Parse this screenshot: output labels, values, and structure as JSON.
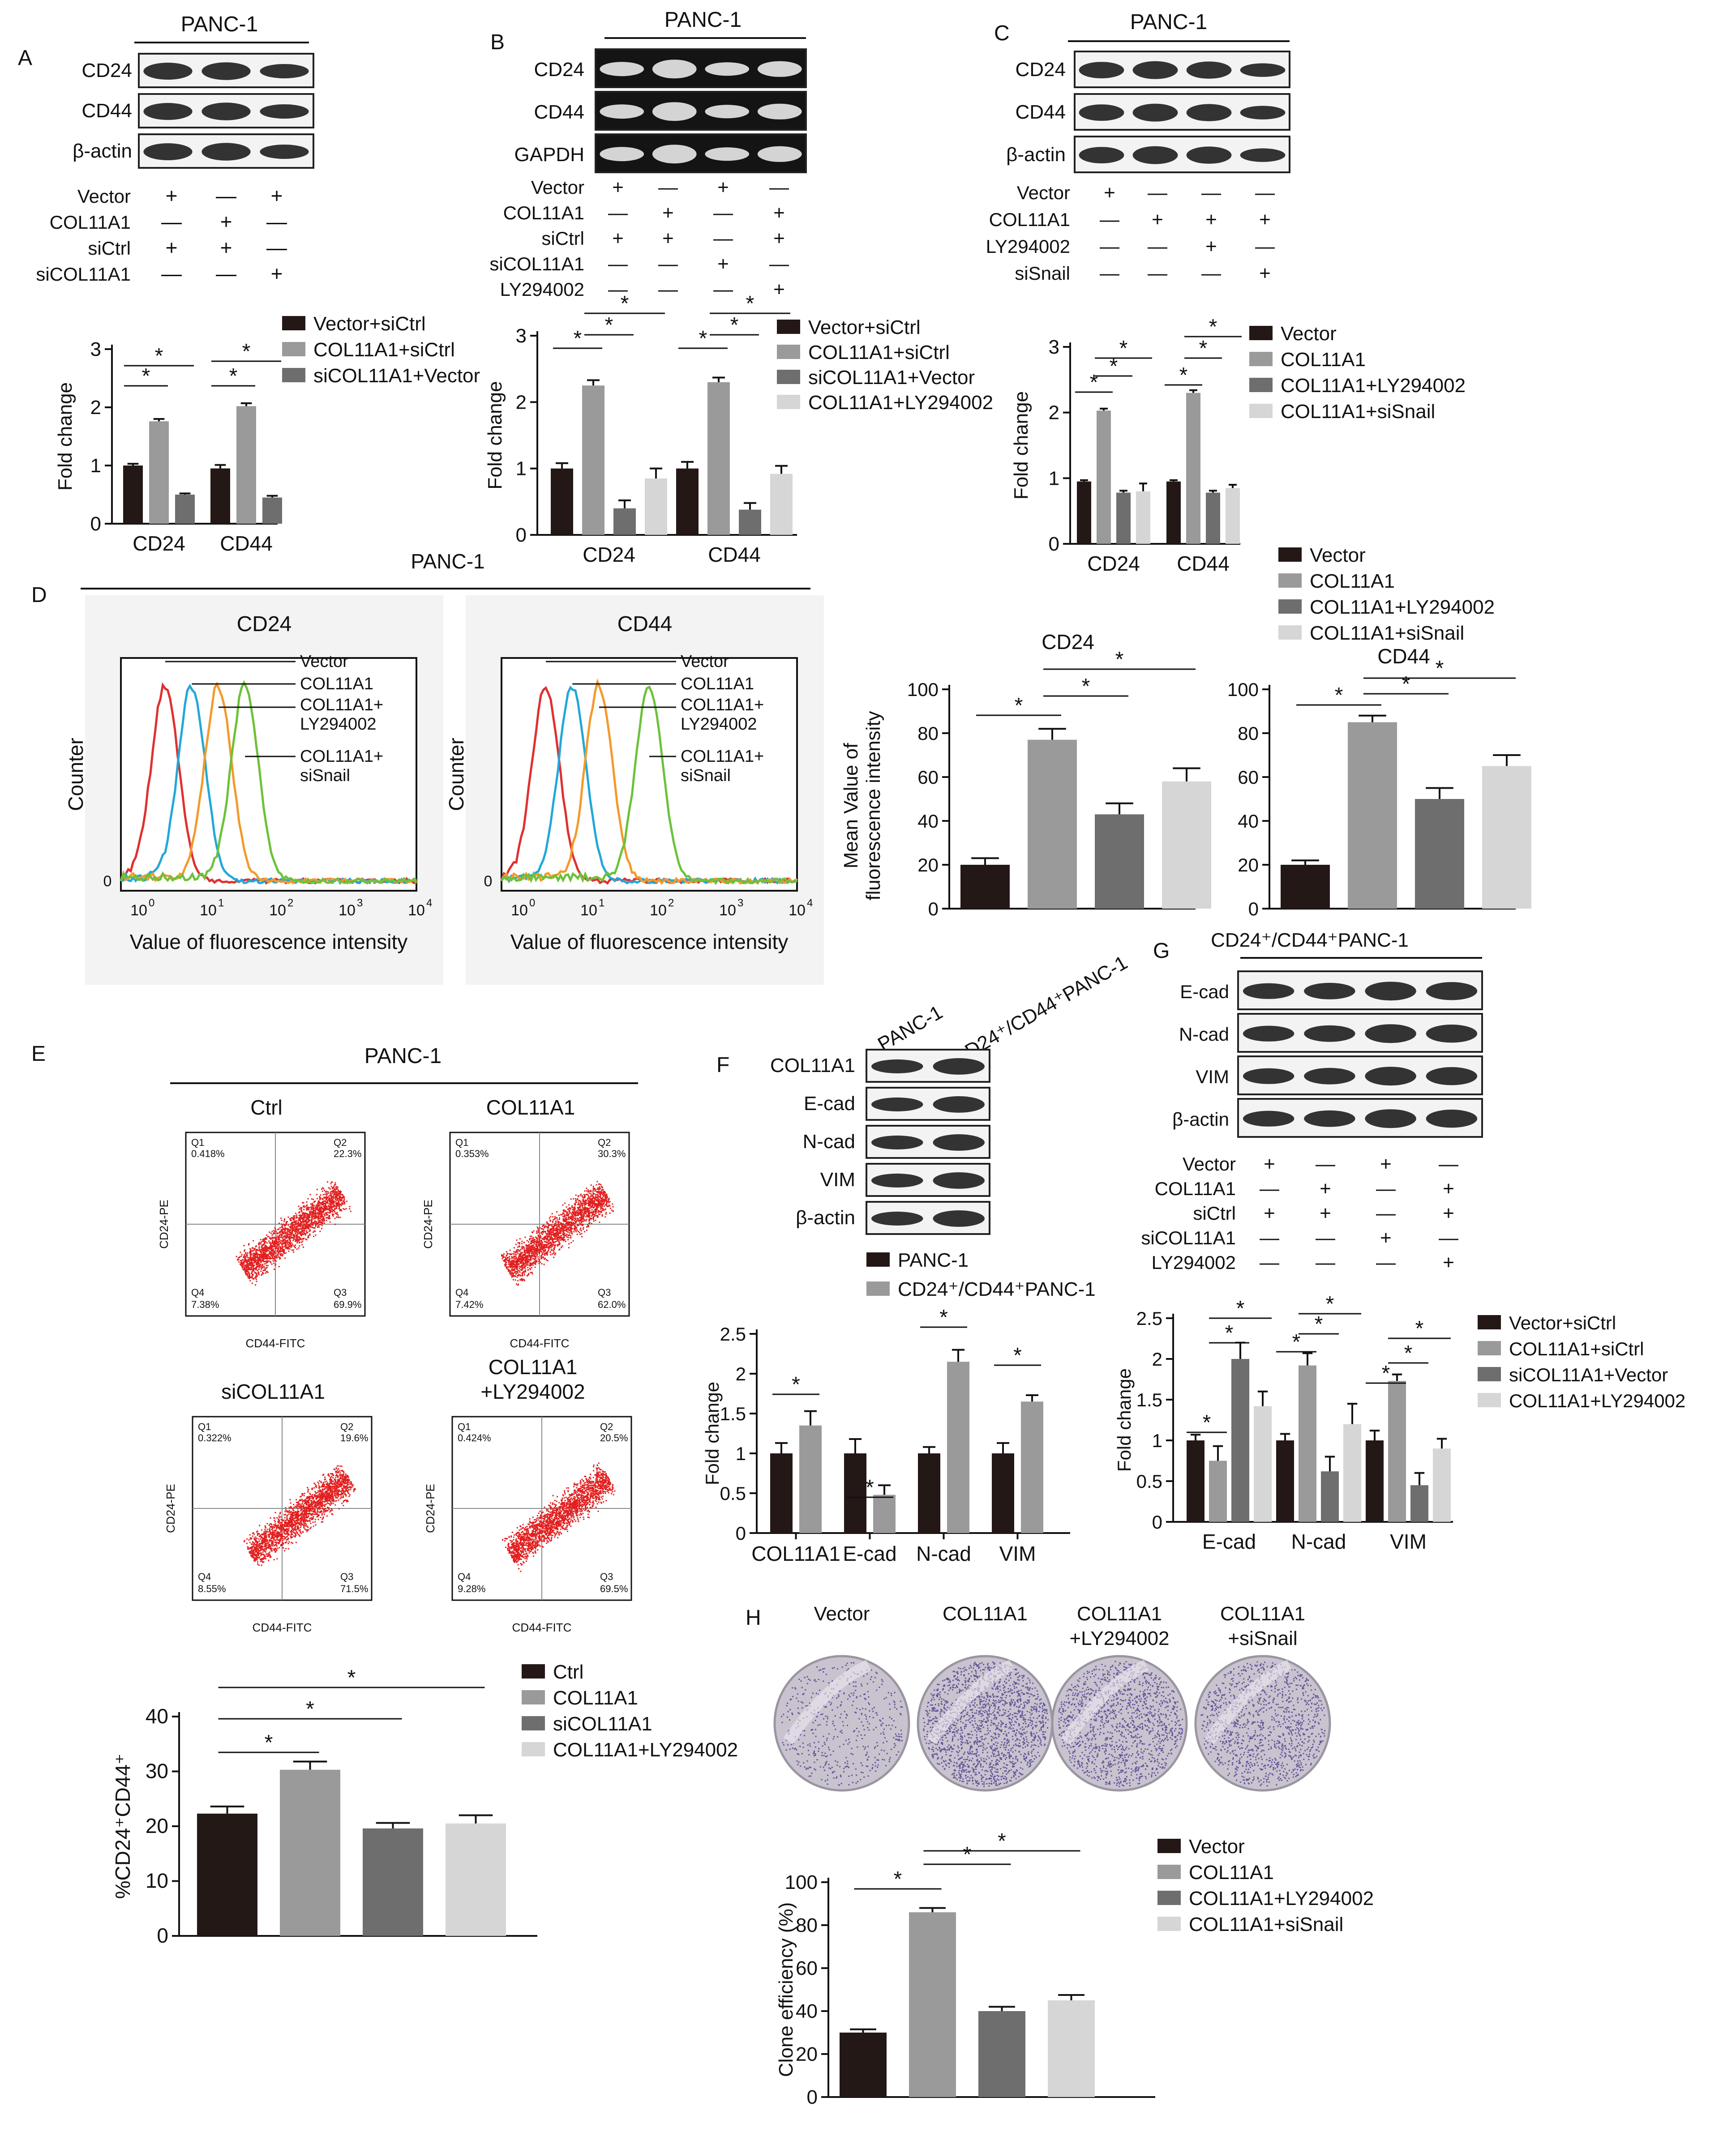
{
  "colors": {
    "c1": "#231816",
    "c2": "#9a9a9b",
    "c3": "#6e6e6f",
    "c4": "#d6d6d6",
    "flowBg": "#f3f3f3",
    "red": "#e03030",
    "cyan": "#22a8d8",
    "orange": "#f39a2c",
    "green": "#6dc13b",
    "dot": "#e21f1f",
    "blot": "#1e1e1e",
    "gel": "#141414"
  },
  "panels": {
    "A": {
      "letter": "A",
      "title": "PANC-1",
      "bands": [
        "CD24",
        "CD44",
        "β-actin"
      ],
      "cond_labels": [
        "Vector",
        "COL11A1",
        "siCtrl",
        "siCOL11A1"
      ],
      "signs": [
        [
          "+",
          "—",
          "+"
        ],
        [
          "—",
          "+",
          "—"
        ],
        [
          "+",
          "+",
          "—"
        ],
        [
          "—",
          "—",
          "+"
        ]
      ],
      "legend": [
        "Vector+siCtrl",
        "COL11A1+siCtrl",
        "siCOL11A1+Vector"
      ]
    },
    "B": {
      "letter": "B",
      "title": "PANC-1",
      "bands": [
        "CD24",
        "CD44",
        "GAPDH"
      ],
      "cond_labels": [
        "Vector",
        "COL11A1",
        "siCtrl",
        "siCOL11A1",
        "LY294002"
      ],
      "signs": [
        [
          "+",
          "—",
          "+",
          "—"
        ],
        [
          "—",
          "+",
          "—",
          "+"
        ],
        [
          "+",
          "+",
          "—",
          "+"
        ],
        [
          "—",
          "—",
          "+",
          "—"
        ],
        [
          "—",
          "—",
          "—",
          "+"
        ]
      ],
      "legend": [
        "Vector+siCtrl",
        "COL11A1+siCtrl",
        "siCOL11A1+Vector",
        "COL11A1+LY294002"
      ]
    },
    "C": {
      "letter": "C",
      "title": "PANC-1",
      "bands": [
        "CD24",
        "CD44",
        "β-actin"
      ],
      "cond_labels": [
        "Vector",
        "COL11A1",
        "LY294002",
        "siSnail"
      ],
      "signs": [
        [
          "+",
          "—",
          "—",
          "—"
        ],
        [
          "—",
          "+",
          "+",
          "+"
        ],
        [
          "—",
          "—",
          "+",
          "—"
        ],
        [
          "—",
          "—",
          "—",
          "+"
        ]
      ],
      "legend": [
        "Vector",
        "COL11A1",
        "COL11A1+LY294002",
        "COL11A1+siSnail"
      ]
    },
    "D": {
      "letter": "D",
      "title": "PANC-1",
      "hist1_title": "CD24",
      "hist2_title": "CD44",
      "ylab": "Counter",
      "xlab": "Value of fluorescence intensity",
      "zero": "0",
      "xticks": [
        "10",
        "10",
        "10",
        "10",
        "10"
      ],
      "xexps": [
        "0",
        "1",
        "2",
        "3",
        "4"
      ],
      "curve_labels": [
        "Vector",
        "COL11A1",
        "COL11A1+",
        "LY294002",
        "COL11A1+",
        "siSnail"
      ],
      "legend": [
        "Vector",
        "COL11A1",
        "COL11A1+LY294002",
        "COL11A1+siSnail"
      ],
      "bar1_title": "CD24",
      "bar2_title": "CD44",
      "bar_ylab1": "Mean Value of",
      "bar_ylab2": "fluorescence intensity"
    },
    "E": {
      "letter": "E",
      "title": "PANC-1",
      "plots": [
        {
          "title": "Ctrl",
          "title2": "",
          "q1": "Q1",
          "q1v": "0.418%",
          "q2": "Q2",
          "q2v": "22.3%",
          "q3": "Q3",
          "q3v": "69.9%",
          "q4": "Q4",
          "q4v": "7.38%"
        },
        {
          "title": "COL11A1",
          "title2": "",
          "q1": "Q1",
          "q1v": "0.353%",
          "q2": "Q2",
          "q2v": "30.3%",
          "q3": "Q3",
          "q3v": "62.0%",
          "q4": "Q4",
          "q4v": "7.42%"
        },
        {
          "title": "siCOL11A1",
          "title2": "",
          "q1": "Q1",
          "q1v": "0.322%",
          "q2": "Q2",
          "q2v": "19.6%",
          "q3": "Q3",
          "q3v": "71.5%",
          "q4": "Q4",
          "q4v": "8.55%"
        },
        {
          "title": "COL11A1",
          "title2": "+LY294002",
          "q1": "Q1",
          "q1v": "0.424%",
          "q2": "Q2",
          "q2v": "20.5%",
          "q3": "Q3",
          "q3v": "69.5%",
          "q4": "Q4",
          "q4v": "9.28%"
        }
      ],
      "flow_xlab": "CD44-FITC",
      "flow_ylab": "CD24-PE",
      "legend": [
        "Ctrl",
        "COL11A1",
        "siCOL11A1",
        "COL11A1+LY294002"
      ]
    },
    "F": {
      "letter": "F",
      "lane_labels": [
        "PANC-1",
        "CD24⁺/CD44⁺PANC-1"
      ],
      "bands": [
        "COL11A1",
        "E-cad",
        "N-cad",
        "VIM",
        "β-actin"
      ],
      "legend": [
        "PANC-1",
        "CD24⁺/CD44⁺PANC-1"
      ]
    },
    "G": {
      "letter": "G",
      "title": "CD24⁺/CD44⁺PANC-1",
      "bands": [
        "E-cad",
        "N-cad",
        "VIM",
        "β-actin"
      ],
      "cond_labels": [
        "Vector",
        "COL11A1",
        "siCtrl",
        "siCOL11A1",
        "LY294002"
      ],
      "signs": [
        [
          "+",
          "—",
          "+",
          "—"
        ],
        [
          "—",
          "+",
          "—",
          "+"
        ],
        [
          "+",
          "+",
          "—",
          "+"
        ],
        [
          "—",
          "—",
          "+",
          "—"
        ],
        [
          "—",
          "—",
          "—",
          "+"
        ]
      ],
      "legend": [
        "Vector+siCtrl",
        "COL11A1+siCtrl",
        "siCOL11A1+Vector",
        "COL11A1+LY294002"
      ]
    },
    "H": {
      "letter": "H",
      "plate_labels": [
        [
          "Vector",
          ""
        ],
        [
          "COL11A1",
          ""
        ],
        [
          "COL11A1",
          "+LY294002"
        ],
        [
          "COL11A1",
          "+siSnail"
        ]
      ],
      "legend": [
        "Vector",
        "COL11A1",
        "COL11A1+LY294002",
        "COL11A1+siSnail"
      ]
    }
  },
  "chart_data": [
    {
      "id": "A",
      "type": "bar",
      "title": "",
      "categories": [
        "CD24",
        "CD44"
      ],
      "ylabel": "Fold change",
      "ylim": [
        0,
        3
      ],
      "ticks": [
        0,
        1,
        2,
        3
      ],
      "series": [
        {
          "name": "Vector+siCtrl",
          "values": [
            1.0,
            0.95
          ],
          "errors": [
            0.03,
            0.06
          ]
        },
        {
          "name": "COL11A1+siCtrl",
          "values": [
            1.76,
            2.02
          ],
          "errors": [
            0.04,
            0.05
          ]
        },
        {
          "name": "siCOL11A1+Vector",
          "values": [
            0.5,
            0.45
          ],
          "errors": [
            0.02,
            0.03
          ]
        }
      ],
      "sig": [
        [
          0,
          0,
          1,
          1
        ],
        [
          0,
          0,
          2,
          2
        ],
        [
          1,
          0,
          1,
          1
        ],
        [
          1,
          0,
          2,
          2
        ]
      ],
      "star": "*"
    },
    {
      "id": "B",
      "type": "bar",
      "title": "",
      "categories": [
        "CD24",
        "CD44"
      ],
      "ylabel": "Fold change",
      "ylim": [
        0,
        3
      ],
      "ticks": [
        0,
        1,
        2,
        3
      ],
      "series": [
        {
          "name": "Vector+siCtrl",
          "values": [
            1.0,
            1.0
          ],
          "errors": [
            0.08,
            0.1
          ]
        },
        {
          "name": "COL11A1+siCtrl",
          "values": [
            2.25,
            2.3
          ],
          "errors": [
            0.08,
            0.07
          ]
        },
        {
          "name": "siCOL11A1+Vector",
          "values": [
            0.4,
            0.38
          ],
          "errors": [
            0.12,
            0.1
          ]
        },
        {
          "name": "COL11A1+LY294002",
          "values": [
            0.85,
            0.92
          ],
          "errors": [
            0.15,
            0.12
          ]
        }
      ],
      "sig": [
        [
          0,
          0,
          1,
          1
        ],
        [
          0,
          1,
          2,
          2
        ],
        [
          0,
          1,
          3,
          3
        ],
        [
          1,
          0,
          1,
          1
        ],
        [
          1,
          1,
          2,
          2
        ],
        [
          1,
          1,
          3,
          3
        ]
      ],
      "star": "*"
    },
    {
      "id": "C",
      "type": "bar",
      "title": "",
      "categories": [
        "CD24",
        "CD44"
      ],
      "ylabel": "Fold change",
      "ylim": [
        0,
        3
      ],
      "ticks": [
        0,
        1,
        2,
        3
      ],
      "series": [
        {
          "name": "Vector",
          "values": [
            0.95,
            0.95
          ],
          "errors": [
            0.02,
            0.02
          ]
        },
        {
          "name": "COL11A1",
          "values": [
            2.03,
            2.3
          ],
          "errors": [
            0.03,
            0.04
          ]
        },
        {
          "name": "COL11A1+LY294002",
          "values": [
            0.78,
            0.78
          ],
          "errors": [
            0.03,
            0.03
          ]
        },
        {
          "name": "COL11A1+siSnail",
          "values": [
            0.8,
            0.85
          ],
          "errors": [
            0.12,
            0.05
          ]
        }
      ],
      "sig": [
        [
          0,
          0,
          1,
          1
        ],
        [
          0,
          1,
          2,
          2
        ],
        [
          0,
          1,
          3,
          3
        ],
        [
          1,
          0,
          1,
          1
        ],
        [
          1,
          1,
          2,
          2
        ],
        [
          1,
          1,
          3,
          3
        ]
      ],
      "star": "*"
    },
    {
      "id": "D1",
      "type": "bar",
      "title": "CD24",
      "categories": [
        "Vector",
        "COL11A1",
        "COL11A1+LY294002",
        "COL11A1+siSnail"
      ],
      "ylabel": "Mean Value of fluorescence intensity",
      "ylim": [
        0,
        100
      ],
      "ticks": [
        0,
        20,
        40,
        60,
        80,
        100
      ],
      "values": [
        20,
        77,
        43,
        58
      ],
      "errors": [
        3,
        5,
        5,
        6
      ],
      "sig": [
        [
          0,
          1
        ],
        [
          1,
          2
        ],
        [
          1,
          3
        ]
      ],
      "star": "*"
    },
    {
      "id": "D2",
      "type": "bar",
      "title": "CD44",
      "categories": [
        "Vector",
        "COL11A1",
        "COL11A1+LY294002",
        "COL11A1+siSnail"
      ],
      "ylabel": "",
      "ylim": [
        0,
        100
      ],
      "ticks": [
        0,
        20,
        40,
        60,
        80,
        100
      ],
      "values": [
        20,
        85,
        50,
        65
      ],
      "errors": [
        2,
        3,
        5,
        5
      ],
      "sig": [
        [
          0,
          1
        ],
        [
          1,
          2
        ],
        [
          1,
          3
        ]
      ],
      "star": "*"
    },
    {
      "id": "E",
      "type": "bar",
      "title": "",
      "categories": [
        "Ctrl",
        "COL11A1",
        "siCOL11A1",
        "COL11A1+LY294002"
      ],
      "ylabel": "%CD24⁺CD44⁺",
      "ylim": [
        0,
        40
      ],
      "ticks": [
        0,
        10,
        20,
        30,
        40
      ],
      "values": [
        22.3,
        30.3,
        19.6,
        20.5
      ],
      "errors": [
        1.3,
        1.5,
        1.0,
        1.5
      ],
      "sig": [
        [
          0,
          1
        ],
        [
          0,
          2
        ],
        [
          0,
          3
        ]
      ],
      "star": "*"
    },
    {
      "id": "F",
      "type": "bar",
      "title": "",
      "categories": [
        "COL11A1",
        "E-cad",
        "N-cad",
        "VIM"
      ],
      "ylabel": "Fold change",
      "ylim": [
        0,
        2.5
      ],
      "ticks": [
        0.0,
        0.5,
        1.0,
        1.5,
        2.0,
        2.5
      ],
      "series": [
        {
          "name": "PANC-1",
          "values": [
            1.0,
            1.0,
            1.0,
            1.0
          ],
          "errors": [
            0.13,
            0.18,
            0.08,
            0.13
          ]
        },
        {
          "name": "CD24⁺/CD44⁺PANC-1",
          "values": [
            1.35,
            0.48,
            2.15,
            1.65
          ],
          "errors": [
            0.18,
            0.12,
            0.15,
            0.08
          ]
        }
      ],
      "sig": [
        [
          0,
          0,
          1,
          1
        ],
        [
          1,
          0,
          1,
          1
        ],
        [
          2,
          0,
          1,
          1
        ],
        [
          3,
          0,
          1,
          1
        ]
      ],
      "star": "*"
    },
    {
      "id": "G",
      "type": "bar",
      "title": "",
      "categories": [
        "E-cad",
        "N-cad",
        "VIM"
      ],
      "ylabel": "Fold change",
      "ylim": [
        0,
        2.5
      ],
      "ticks": [
        0.0,
        0.5,
        1.0,
        1.5,
        2.0,
        2.5
      ],
      "series": [
        {
          "name": "Vector+siCtrl",
          "values": [
            1.0,
            1.0,
            1.0
          ],
          "errors": [
            0.07,
            0.08,
            0.12
          ]
        },
        {
          "name": "COL11A1+siCtrl",
          "values": [
            0.75,
            1.92,
            1.73
          ],
          "errors": [
            0.18,
            0.15,
            0.08
          ]
        },
        {
          "name": "siCOL11A1+Vector",
          "values": [
            2.0,
            0.62,
            0.45
          ],
          "errors": [
            0.2,
            0.18,
            0.15
          ]
        },
        {
          "name": "COL11A1+LY294002",
          "values": [
            1.42,
            1.2,
            0.9
          ],
          "errors": [
            0.18,
            0.25,
            0.12
          ]
        }
      ],
      "sig": [
        [
          0,
          0,
          1,
          1
        ],
        [
          0,
          1,
          2,
          2
        ],
        [
          0,
          1,
          3,
          3
        ],
        [
          1,
          0,
          1,
          1
        ],
        [
          1,
          1,
          2,
          2
        ],
        [
          1,
          1,
          3,
          3
        ],
        [
          2,
          0,
          1,
          1
        ],
        [
          2,
          1,
          2,
          2
        ],
        [
          2,
          1,
          3,
          3
        ]
      ],
      "star": "*"
    },
    {
      "id": "H",
      "type": "bar",
      "title": "",
      "categories": [
        "Vector",
        "COL11A1",
        "COL11A1+LY294002",
        "COL11A1+siSnail"
      ],
      "ylabel": "Clone efficiency (%)",
      "ylim": [
        0,
        100
      ],
      "ticks": [
        0,
        20,
        40,
        60,
        80,
        100
      ],
      "values": [
        30,
        86,
        40,
        45
      ],
      "errors": [
        1.5,
        2,
        2,
        2.5
      ],
      "sig": [
        [
          0,
          1
        ],
        [
          1,
          2
        ],
        [
          1,
          3
        ]
      ],
      "star": "*"
    }
  ]
}
